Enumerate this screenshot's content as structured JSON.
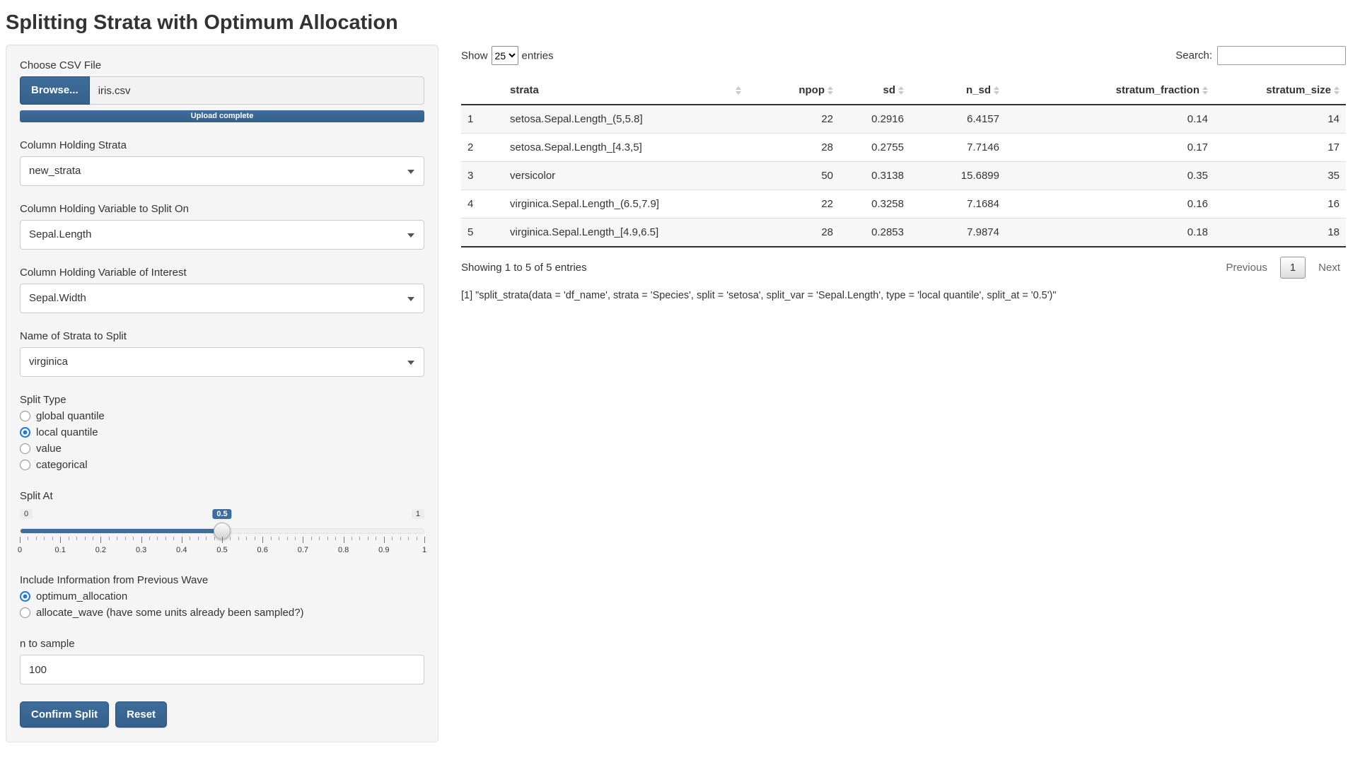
{
  "page": {
    "title": "Splitting Strata with Optimum Allocation"
  },
  "colors": {
    "accent": "#3e6d9b",
    "accent_dark": "#35608a",
    "button_border": "#2c4f73",
    "radio_accent": "#2374e8",
    "stripe": "#f7f7f7",
    "table_header_border": "#303030"
  },
  "sidebar": {
    "file_input": {
      "label": "Choose CSV File",
      "browse_label": "Browse...",
      "filename": "iris.csv",
      "progress_text": "Upload complete"
    },
    "selects": [
      {
        "label": "Column Holding Strata",
        "value": "new_strata"
      },
      {
        "label": "Column Holding Variable to Split On",
        "value": "Sepal.Length"
      },
      {
        "label": "Column Holding Variable of Interest",
        "value": "Sepal.Width"
      },
      {
        "label": "Name of Strata to Split",
        "value": "virginica"
      }
    ],
    "split_type": {
      "label": "Split Type",
      "options": [
        {
          "label": "global quantile",
          "selected": false
        },
        {
          "label": "local quantile",
          "selected": true
        },
        {
          "label": "value",
          "selected": false
        },
        {
          "label": "categorical",
          "selected": false
        }
      ]
    },
    "split_at": {
      "label": "Split At",
      "min": "0",
      "max": "1",
      "value": "0.5",
      "value_percent": 50,
      "tick_labels": [
        "0",
        "0.1",
        "0.2",
        "0.3",
        "0.4",
        "0.5",
        "0.6",
        "0.7",
        "0.8",
        "0.9",
        "1"
      ]
    },
    "previous_wave": {
      "label": "Include Information from Previous Wave",
      "options": [
        {
          "label": "optimum_allocation",
          "selected": true
        },
        {
          "label": "allocate_wave (have some units already been sampled?)",
          "selected": false
        }
      ]
    },
    "n_to_sample": {
      "label": "n to sample",
      "value": "100"
    },
    "buttons": {
      "confirm": "Confirm Split",
      "reset": "Reset"
    }
  },
  "table": {
    "show_label": "Show",
    "page_length": "25",
    "entries_label": "entries",
    "search_label": "Search:",
    "search_value": "",
    "columns": [
      "strata",
      "npop",
      "sd",
      "n_sd",
      "stratum_fraction",
      "stratum_size"
    ],
    "rows": [
      [
        "1",
        "setosa.Sepal.Length_(5,5.8]",
        "22",
        "0.2916",
        "6.4157",
        "0.14",
        "14"
      ],
      [
        "2",
        "setosa.Sepal.Length_[4.3,5]",
        "28",
        "0.2755",
        "7.7146",
        "0.17",
        "17"
      ],
      [
        "3",
        "versicolor",
        "50",
        "0.3138",
        "15.6899",
        "0.35",
        "35"
      ],
      [
        "4",
        "virginica.Sepal.Length_(6.5,7.9]",
        "22",
        "0.3258",
        "7.1684",
        "0.16",
        "16"
      ],
      [
        "5",
        "virginica.Sepal.Length_[4.9,6.5]",
        "28",
        "0.2853",
        "7.9874",
        "0.18",
        "18"
      ]
    ],
    "info": "Showing 1 to 5 of 5 entries",
    "pagination": {
      "previous": "Previous",
      "pages": [
        "1"
      ],
      "next": "Next"
    }
  },
  "console_output": "[1] \"split_strata(data = 'df_name', strata = 'Species', split = 'setosa', split_var = 'Sepal.Length', type = 'local quantile', split_at = '0.5')\""
}
